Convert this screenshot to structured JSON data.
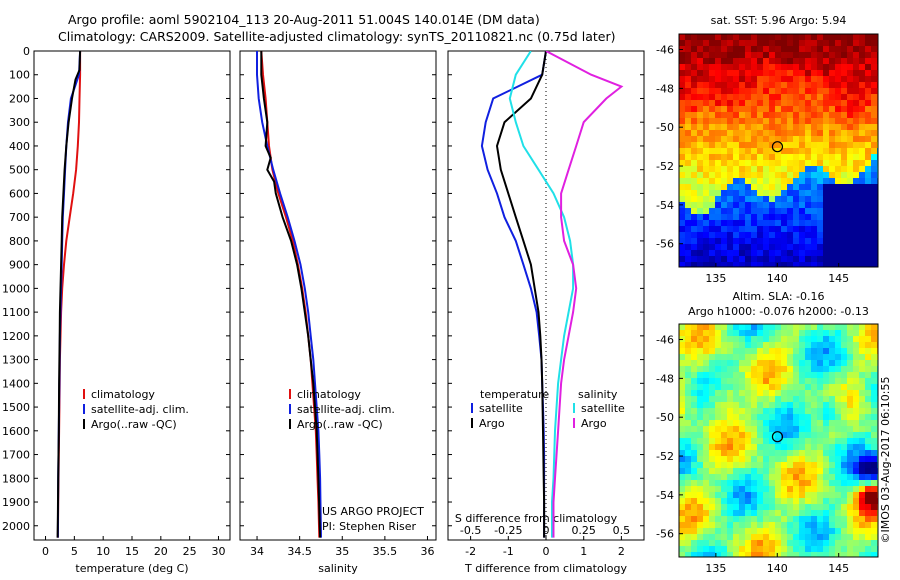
{
  "header": {
    "line1": "Argo profile: aoml 5902104_113 20-Aug-2011 51.004S 140.014E (DM data)",
    "line2": "Climatology: CARS2009. Satellite-adjusted climatology: synTS_20110821.nc (0.75d later)"
  },
  "colors": {
    "clim": "#e01010",
    "sat": "#1020e0",
    "argo": "#000000",
    "sat_s": "#20e0e8",
    "argo_s": "#e020e0"
  },
  "depth_ticks": [
    0,
    100,
    200,
    300,
    400,
    500,
    600,
    700,
    800,
    900,
    1000,
    1100,
    1200,
    1300,
    1400,
    1500,
    1600,
    1700,
    1800,
    1900,
    2000
  ],
  "panel1": {
    "xlabel": "temperature (deg C)",
    "xticks": [
      0,
      5,
      10,
      15,
      20,
      25,
      30
    ],
    "legend": [
      "climatology",
      "satellite-adj. clim.",
      "Argo(..raw -QC)"
    ]
  },
  "panel2": {
    "xlabel": "salinity",
    "xticks": [
      "34",
      "34.5",
      "35",
      "35.5",
      "36"
    ],
    "legend": [
      "climatology",
      "satellite-adj. clim.",
      "Argo(..raw -QC)"
    ],
    "credit1": "US ARGO PROJECT",
    "credit2": "PI: Stephen Riser"
  },
  "panel3": {
    "xlabel": "T difference from climatology",
    "xlabel_top": "S difference from climatology",
    "xticks_t": [
      "-2",
      "-1",
      "0",
      "1",
      "2"
    ],
    "xticks_s": [
      "-0.5",
      "-0.25",
      "0",
      "0.25",
      "0.5"
    ],
    "legend_t_head": "temperature",
    "legend_s_head": "salinity",
    "legend_t": [
      "satellite",
      "Argo"
    ],
    "legend_s": [
      "satellite",
      "Argo"
    ]
  },
  "map1": {
    "title": "sat. SST: 5.96 Argo: 5.94",
    "yticks": [
      "-46",
      "-48",
      "-50",
      "-52",
      "-54",
      "-56"
    ],
    "xticks": [
      "135",
      "140",
      "145"
    ]
  },
  "map2": {
    "title1": "Altim. SLA: -0.16",
    "title2": "Argo h1000: -0.076 h2000: -0.13",
    "yticks": [
      "-46",
      "-48",
      "-50",
      "-52",
      "-54",
      "-56"
    ],
    "xticks": [
      "135",
      "140",
      "145"
    ]
  },
  "watermark": "©IMOS 03-Aug-2017 06:10:55",
  "chart_data": [
    {
      "type": "line",
      "title": "",
      "xlabel": "temperature (deg C)",
      "ylabel": "",
      "xlim": [
        -2,
        32
      ],
      "ylim": [
        2060,
        0
      ],
      "series": [
        {
          "name": "climatology",
          "x": [
            6.0,
            6.0,
            5.9,
            5.8,
            5.6,
            5.3,
            4.8,
            4.2,
            3.6,
            3.2,
            2.9,
            2.7,
            2.6,
            2.5,
            2.45,
            2.4,
            2.35,
            2.3,
            2.25,
            2.2,
            2.15
          ],
          "y": [
            0,
            100,
            200,
            300,
            400,
            500,
            600,
            700,
            800,
            900,
            1000,
            1100,
            1200,
            1300,
            1400,
            1500,
            1600,
            1700,
            1800,
            1900,
            2050
          ]
        },
        {
          "name": "satellite-adj. clim.",
          "x": [
            6.0,
            5.8,
            4.4,
            3.9,
            3.6,
            3.4,
            3.2,
            3.0,
            2.9,
            2.8,
            2.7,
            2.6,
            2.5,
            2.45,
            2.4,
            2.35,
            2.3,
            2.25,
            2.2,
            2.15
          ],
          "y": [
            0,
            100,
            200,
            300,
            400,
            500,
            600,
            700,
            800,
            900,
            1000,
            1100,
            1200,
            1300,
            1400,
            1500,
            1600,
            1700,
            1800,
            2050
          ]
        },
        {
          "name": "Argo(..raw -QC)",
          "x": [
            6.0,
            5.9,
            5.2,
            4.6,
            4.0,
            3.6,
            3.3,
            3.1,
            2.9,
            2.8,
            2.7,
            2.6,
            2.5,
            2.45,
            2.4,
            2.35,
            2.3,
            2.2,
            2.15,
            2.1
          ],
          "y": [
            0,
            80,
            120,
            200,
            300,
            400,
            500,
            600,
            700,
            800,
            900,
            1000,
            1100,
            1200,
            1300,
            1400,
            1600,
            1800,
            1950,
            2050
          ]
        }
      ]
    },
    {
      "type": "line",
      "title": "",
      "xlabel": "salinity",
      "ylabel": "",
      "xlim": [
        33.8,
        36.1
      ],
      "ylim": [
        2060,
        0
      ],
      "series": [
        {
          "name": "climatology",
          "x": [
            34.05,
            34.07,
            34.1,
            34.12,
            34.14,
            34.18,
            34.25,
            34.34,
            34.42,
            34.48,
            34.53,
            34.57,
            34.6,
            34.63,
            34.65,
            34.67,
            34.69,
            34.7,
            34.71,
            34.72,
            34.73
          ],
          "y": [
            0,
            100,
            200,
            300,
            400,
            500,
            600,
            700,
            800,
            900,
            1000,
            1100,
            1200,
            1300,
            1400,
            1500,
            1600,
            1700,
            1800,
            1900,
            2050
          ]
        },
        {
          "name": "satellite-adj. clim.",
          "x": [
            34.0,
            34.0,
            34.02,
            34.06,
            34.12,
            34.19,
            34.27,
            34.36,
            34.44,
            34.51,
            34.56,
            34.6,
            34.63,
            34.66,
            34.68,
            34.7,
            34.72,
            34.73,
            34.74,
            34.75
          ],
          "y": [
            0,
            100,
            200,
            300,
            400,
            500,
            600,
            700,
            800,
            900,
            1000,
            1100,
            1200,
            1300,
            1400,
            1500,
            1600,
            1700,
            1800,
            2050
          ]
        },
        {
          "name": "Argo(..raw -QC)",
          "x": [
            34.05,
            34.05,
            34.08,
            34.12,
            34.1,
            34.16,
            34.12,
            34.2,
            34.22,
            34.3,
            34.4,
            34.47,
            34.52,
            34.56,
            34.6,
            34.63,
            34.66,
            34.68,
            34.7,
            34.72,
            34.74
          ],
          "y": [
            0,
            100,
            200,
            300,
            400,
            450,
            500,
            550,
            600,
            700,
            800,
            900,
            1000,
            1100,
            1200,
            1300,
            1400,
            1500,
            1600,
            1800,
            2050
          ]
        }
      ]
    },
    {
      "type": "line",
      "title": "",
      "xlabel": "T difference from climatology",
      "ylabel": "",
      "xlim": [
        -2.6,
        2.6
      ],
      "ylim": [
        2060,
        0
      ],
      "series": [
        {
          "name": "temperature satellite",
          "x": [
            0,
            -0.1,
            -1.4,
            -1.6,
            -1.7,
            -1.55,
            -1.3,
            -1.1,
            -0.8,
            -0.6,
            -0.4,
            -0.25,
            -0.18,
            -0.12,
            -0.1,
            -0.08,
            -0.06,
            -0.05,
            -0.05,
            -0.05
          ],
          "y": [
            0,
            100,
            200,
            300,
            400,
            500,
            600,
            700,
            800,
            900,
            1000,
            1100,
            1200,
            1300,
            1400,
            1500,
            1600,
            1700,
            1800,
            2050
          ]
        },
        {
          "name": "temperature Argo",
          "x": [
            0,
            -0.1,
            -0.4,
            -1.1,
            -1.3,
            -1.2,
            -1.0,
            -0.8,
            -0.6,
            -0.4,
            -0.3,
            -0.2,
            -0.15,
            -0.12,
            -0.1,
            -0.08,
            -0.06,
            -0.05,
            -0.05
          ],
          "y": [
            0,
            100,
            200,
            300,
            400,
            500,
            600,
            700,
            800,
            900,
            1000,
            1100,
            1200,
            1300,
            1400,
            1600,
            1800,
            1900,
            2050
          ]
        },
        {
          "name": "salinity satellite",
          "x": [
            -0.1,
            -0.2,
            -0.24,
            -0.2,
            -0.15,
            -0.05,
            0.05,
            0.12,
            0.16,
            0.18,
            0.18,
            0.15,
            0.12,
            0.1,
            0.08,
            0.06,
            0.05,
            0.04,
            0.04
          ],
          "y": [
            0,
            100,
            200,
            300,
            400,
            500,
            600,
            700,
            800,
            900,
            1000,
            1100,
            1200,
            1300,
            1400,
            1600,
            1800,
            1900,
            2050
          ]
        },
        {
          "name": "salinity Argo",
          "x": [
            0,
            0.3,
            0.5,
            0.4,
            0.25,
            0.2,
            0.15,
            0.1,
            0.1,
            0.12,
            0.18,
            0.2,
            0.18,
            0.15,
            0.12,
            0.1,
            0.08,
            0.06,
            0.05,
            0.05
          ],
          "y": [
            0,
            100,
            150,
            200,
            300,
            400,
            500,
            600,
            700,
            800,
            900,
            1000,
            1100,
            1200,
            1300,
            1400,
            1600,
            1800,
            1900,
            2050
          ]
        }
      ]
    }
  ]
}
